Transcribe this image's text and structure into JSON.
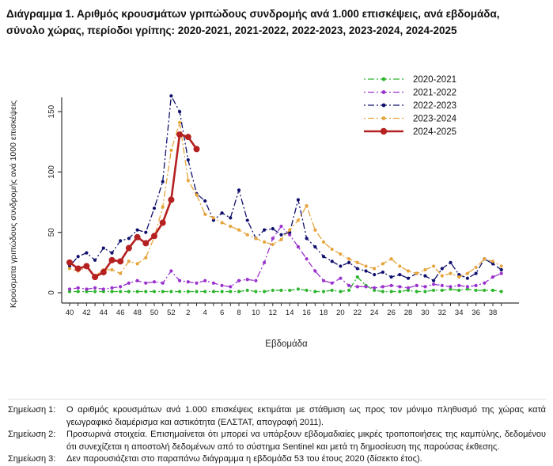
{
  "title": {
    "line1": "Διάγραμμα 1. Αριθμός κρουσμάτων γριπώδους συνδρομής ανά 1.000 επισκέψεις, ανά εβδομάδα,",
    "line2": "σύνολο χώρας, περίοδοι γρίπης: 2020-2021, 2021-2022, 2022-2023, 2023-2024, 2024-2025"
  },
  "chart_data": {
    "type": "line",
    "xlabel": "Εβδομάδα",
    "ylabel": "Κρούσματα γριπώδους συνδρομής ανά 1000 επισκέψεις",
    "ylim": [
      0,
      165
    ],
    "yticks": [
      0,
      50,
      100,
      150
    ],
    "grid": "off",
    "legend_position": "top-right",
    "weeks": [
      40,
      41,
      42,
      43,
      44,
      45,
      46,
      47,
      48,
      49,
      50,
      51,
      52,
      1,
      2,
      3,
      4,
      5,
      6,
      7,
      8,
      9,
      10,
      11,
      12,
      13,
      14,
      15,
      16,
      17,
      18,
      19,
      20,
      21,
      22,
      23,
      24,
      25,
      26,
      27,
      28,
      29,
      30,
      31,
      32,
      33,
      34,
      35,
      36,
      37,
      38,
      39
    ],
    "x_labeled_ticks": [
      40,
      42,
      44,
      46,
      48,
      50,
      52,
      2,
      4,
      6,
      8,
      10,
      12,
      14,
      16,
      18,
      20,
      22,
      24,
      26,
      28,
      30,
      32,
      34,
      36,
      38
    ],
    "series": [
      {
        "name": "2020-2021",
        "color": "#2db52d",
        "line": "dotdash",
        "weight": "thin",
        "values": [
          1,
          1,
          1,
          1,
          1,
          1,
          1,
          1,
          1,
          1,
          1,
          1,
          1,
          1,
          1,
          1,
          1,
          1,
          1,
          1,
          1,
          2,
          1,
          1,
          2,
          2,
          2,
          3,
          2,
          1,
          1,
          2,
          1,
          2,
          13,
          6,
          2,
          1,
          1,
          1,
          2,
          1,
          1,
          2,
          2,
          3,
          2,
          3,
          2,
          2,
          2,
          1
        ]
      },
      {
        "name": "2021-2022",
        "color": "#9a32cd",
        "line": "dotdash",
        "weight": "thin",
        "values": [
          3,
          4,
          3,
          4,
          3,
          4,
          5,
          8,
          10,
          8,
          9,
          8,
          18,
          10,
          9,
          8,
          10,
          8,
          6,
          5,
          10,
          11,
          10,
          25,
          45,
          55,
          48,
          38,
          28,
          18,
          10,
          8,
          12,
          6,
          5,
          5,
          4,
          5,
          6,
          5,
          4,
          6,
          5,
          7,
          6,
          5,
          6,
          5,
          6,
          8,
          13,
          16
        ]
      },
      {
        "name": "2022-2023",
        "color": "#10106e",
        "line": "dotdash",
        "weight": "thin",
        "values": [
          22,
          30,
          33,
          27,
          37,
          33,
          43,
          45,
          52,
          50,
          70,
          92,
          163,
          150,
          110,
          82,
          76,
          60,
          66,
          62,
          85,
          60,
          45,
          52,
          53,
          48,
          50,
          77,
          45,
          38,
          30,
          26,
          22,
          25,
          20,
          18,
          15,
          17,
          13,
          15,
          12,
          16,
          14,
          10,
          20,
          25,
          15,
          12,
          16,
          28,
          24,
          19
        ]
      },
      {
        "name": "2023-2024",
        "color": "#e5a43c",
        "line": "dotdash",
        "weight": "thin",
        "values": [
          20,
          18,
          21,
          14,
          19,
          19,
          16,
          26,
          24,
          29,
          46,
          71,
          118,
          141,
          93,
          81,
          65,
          62,
          58,
          55,
          52,
          48,
          45,
          42,
          40,
          44,
          52,
          60,
          72,
          52,
          42,
          36,
          32,
          28,
          25,
          22,
          20,
          24,
          28,
          22,
          18,
          16,
          19,
          22,
          14,
          16,
          13,
          16,
          21,
          28,
          26,
          22
        ]
      },
      {
        "name": "2024-2025",
        "color": "#b52020",
        "line": "solid",
        "weight": "thick",
        "values": [
          25,
          20,
          22,
          13,
          17,
          27,
          26,
          37,
          46,
          41,
          47,
          58,
          77,
          131,
          129,
          119,
          null,
          null,
          null,
          null,
          null,
          null,
          null,
          null,
          null,
          null,
          null,
          null,
          null,
          null,
          null,
          null,
          null,
          null,
          null,
          null,
          null,
          null,
          null,
          null,
          null,
          null,
          null,
          null,
          null,
          null,
          null,
          null,
          null,
          null,
          null,
          null
        ]
      }
    ]
  },
  "notes": [
    {
      "label": "Σημείωση 1:",
      "text": "Ο αριθμός κρουσμάτων ανά 1.000 επισκέψεις εκτιμάται με στάθμιση ως προς τον μόνιμο πληθυσμό της χώρας κατά γεωγραφικό διαμέρισμα και αστικότητα (ΕΛΣΤΑΤ, απογραφή 2011)."
    },
    {
      "label": "Σημείωση 2:",
      "text": "Προσωρινά στοιχεία. Επισημαίνεται ότι μπορεί να υπάρξουν εβδομαδιαίες μικρές τροποποιήσεις της καμπύλης, δεδομένου ότι συνεχίζεται η αποστολή δεδομένων από το σύστημα Sentinel και μετά τη δημοσίευση της παρούσας έκθεσης."
    },
    {
      "label": "Σημείωση 3:",
      "text": "Δεν παρουσιάζεται στο παραπάνω διάγραμμα η εβδομάδα 53 του έτους 2020 (δίσεκτο έτος)."
    }
  ]
}
